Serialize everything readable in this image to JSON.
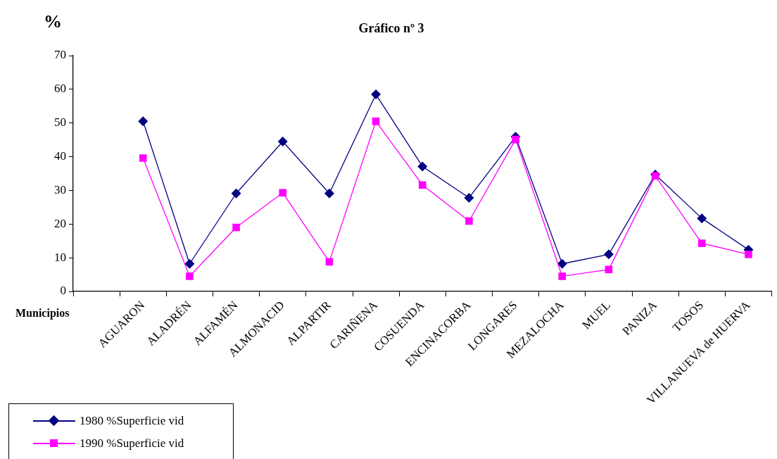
{
  "chart_data": {
    "type": "line",
    "title": "Gráfico nº 3",
    "ylabel": "%",
    "xlabel": "Municipios",
    "categories": [
      null,
      "AGUARON",
      "ALADRÉN",
      "ALFAMÉN",
      "ALMONACID",
      "ALPARTIR",
      "CARIÑENA",
      "COSUENDA",
      "ENCINACORBA",
      "LONGARES",
      "MEZALOCHA",
      "MUEL",
      "PANIZA",
      "TOSOS",
      "VILLANUEVA de HUERVA"
    ],
    "series": [
      {
        "name": "1980 %Superficie vid",
        "color": "#000080",
        "marker": "diamond",
        "values": [
          null,
          50.5,
          8.2,
          29.1,
          44.5,
          29.1,
          58.5,
          37.1,
          27.8,
          45.9,
          8.2,
          11.0,
          34.7,
          21.7,
          12.4
        ]
      },
      {
        "name": "1990 %Superficie vid",
        "color": "#ff00ff",
        "marker": "square",
        "values": [
          null,
          39.6,
          4.5,
          19.0,
          29.3,
          8.8,
          50.5,
          31.6,
          20.9,
          45.1,
          4.5,
          6.5,
          34.3,
          14.3,
          11.0
        ]
      }
    ],
    "ylim": [
      0,
      70
    ],
    "yticks": [
      0,
      10,
      20,
      30,
      40,
      50,
      60,
      70
    ],
    "grid": false,
    "legend": "bottom left",
    "line_style": "solid"
  }
}
